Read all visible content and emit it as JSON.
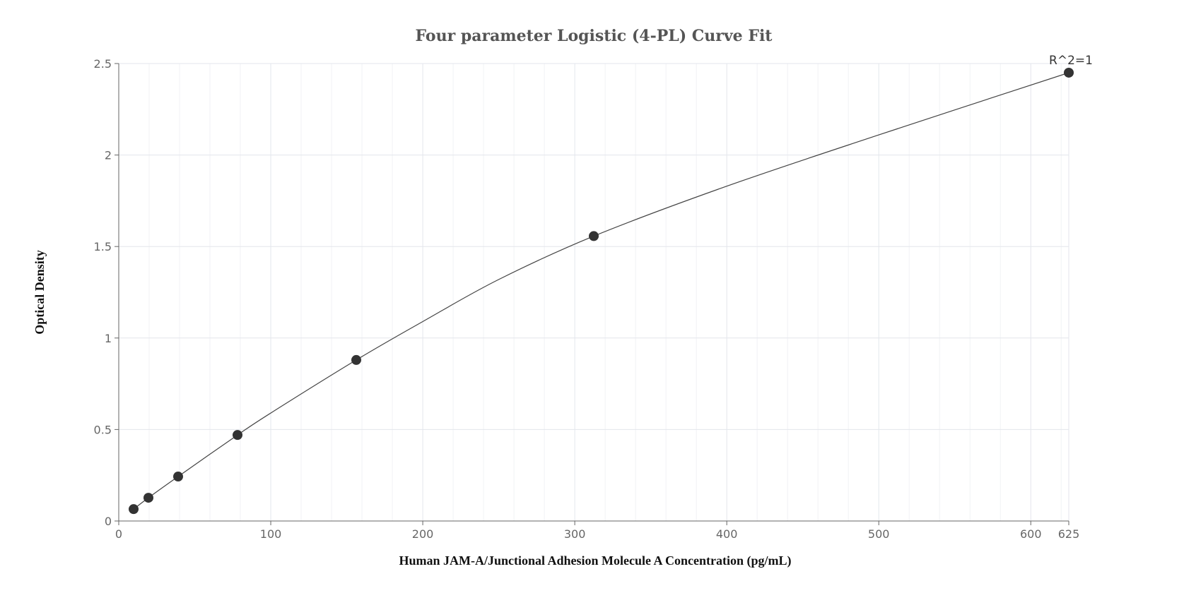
{
  "chart_data": {
    "type": "scatter",
    "title": "Four parameter Logistic (4-PL) Curve Fit",
    "xlabel": "Human JAM-A/Junctional Adhesion Molecule A Concentration (pg/mL)",
    "ylabel": "Optical Density",
    "xlim": [
      0,
      625
    ],
    "ylim": [
      0,
      2.5
    ],
    "x_ticks": [
      0,
      100,
      200,
      300,
      400,
      500,
      600,
      625
    ],
    "y_ticks": [
      0,
      0.5,
      1,
      1.5,
      2,
      2.5
    ],
    "grid": true,
    "series": [
      {
        "kind": "points",
        "x": [
          9.77,
          19.53,
          39.06,
          78.13,
          156.25,
          312.5,
          625
        ],
        "y": [
          0.065,
          0.127,
          0.243,
          0.47,
          0.88,
          1.557,
          2.45
        ]
      },
      {
        "kind": "fitted-curve",
        "x": [
          9.77,
          19.53,
          39.06,
          78.13,
          100,
          156.25,
          200,
          250,
          312.5,
          400,
          500,
          625
        ],
        "y": [
          0.065,
          0.127,
          0.243,
          0.47,
          0.59,
          0.88,
          1.09,
          1.32,
          1.557,
          1.83,
          2.11,
          2.45
        ]
      }
    ],
    "annotation": "R^2=1",
    "colors": {
      "point": "#333333",
      "line": "#444444",
      "grid": "#e3e6ec",
      "axis": "#666666"
    }
  }
}
